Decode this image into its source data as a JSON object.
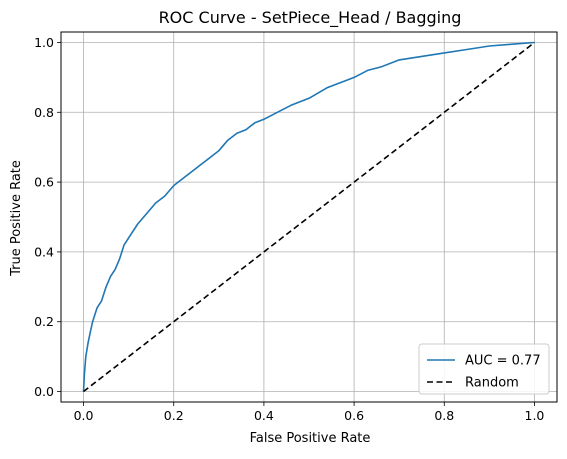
{
  "chart_data": {
    "type": "line",
    "title": "ROC Curve - SetPiece_Head / Bagging",
    "xlabel": "False Positive Rate",
    "ylabel": "True Positive Rate",
    "xlim": [
      -0.05,
      1.05
    ],
    "ylim": [
      -0.03,
      1.03
    ],
    "x_ticks": [
      0.0,
      0.2,
      0.4,
      0.6,
      0.8,
      1.0
    ],
    "y_ticks": [
      0.0,
      0.2,
      0.4,
      0.6,
      0.8,
      1.0
    ],
    "x_tick_labels": [
      "0.0",
      "0.2",
      "0.4",
      "0.6",
      "0.8",
      "1.0"
    ],
    "y_tick_labels": [
      "0.0",
      "0.2",
      "0.4",
      "0.6",
      "0.8",
      "1.0"
    ],
    "grid": true,
    "legend_position": "lower-right",
    "series": [
      {
        "name": "AUC = 0.77",
        "color": "#1f77b4",
        "style": "solid",
        "x": [
          0.0,
          0.002,
          0.005,
          0.01,
          0.015,
          0.02,
          0.03,
          0.04,
          0.05,
          0.06,
          0.07,
          0.08,
          0.09,
          0.1,
          0.12,
          0.14,
          0.16,
          0.18,
          0.2,
          0.22,
          0.24,
          0.26,
          0.28,
          0.3,
          0.32,
          0.34,
          0.36,
          0.38,
          0.4,
          0.43,
          0.46,
          0.5,
          0.54,
          0.58,
          0.6,
          0.63,
          0.66,
          0.7,
          0.75,
          0.8,
          0.85,
          0.9,
          0.95,
          1.0
        ],
        "y": [
          0.0,
          0.05,
          0.1,
          0.14,
          0.17,
          0.2,
          0.24,
          0.26,
          0.3,
          0.33,
          0.35,
          0.38,
          0.42,
          0.44,
          0.48,
          0.51,
          0.54,
          0.56,
          0.59,
          0.61,
          0.63,
          0.65,
          0.67,
          0.69,
          0.72,
          0.74,
          0.75,
          0.77,
          0.78,
          0.8,
          0.82,
          0.84,
          0.87,
          0.89,
          0.9,
          0.92,
          0.93,
          0.95,
          0.96,
          0.97,
          0.98,
          0.99,
          0.995,
          1.0
        ]
      },
      {
        "name": "Random",
        "color": "#000000",
        "style": "dashed",
        "x": [
          0.0,
          1.0
        ],
        "y": [
          0.0,
          1.0
        ]
      }
    ]
  }
}
